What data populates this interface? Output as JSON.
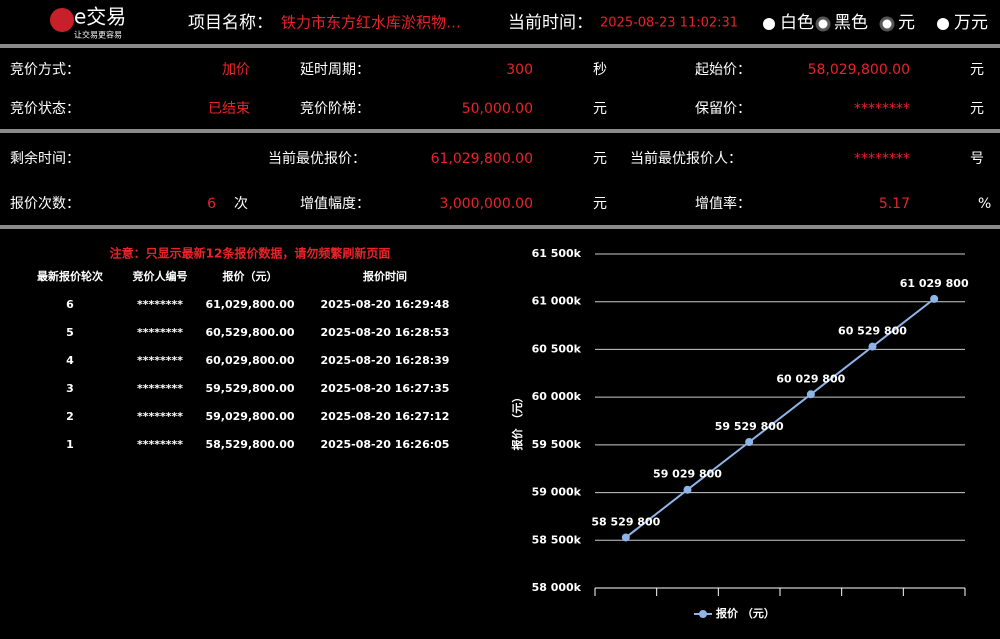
{
  "header": {
    "logo": "e交易",
    "slogan": "让交易更容易",
    "project_label": "项目名称：",
    "project_name": "铁力市东方红水库淤积物…",
    "time_label": "当前时间：",
    "time": "2025-08-23 11:02:31",
    "options": [
      "白色",
      "黑色",
      "元",
      "万元"
    ]
  },
  "info": {
    "method_label": "竞价方式：",
    "method": "加价",
    "delay_label": "延时周期：",
    "delay": "300",
    "delay_unit": "秒",
    "start_label": "起始价：",
    "start": "58,029,800.00",
    "start_unit": "元",
    "status_label": "竞价状态：",
    "status": "已结束",
    "step_label": "竞价阶梯：",
    "step": "50,000.00",
    "step_unit": "元",
    "reserve_label": "保留价：",
    "reserve": "********",
    "reserve_unit": "元",
    "remain_label": "剩余时间：",
    "best_label": "当前最优报价：",
    "best": "61,029,800.00",
    "best_unit": "元",
    "bidder_label": "当前最优报价人：",
    "bidder": "********",
    "bidder_unit": "号",
    "count_label": "报价次数：",
    "count": "6",
    "count_unit": "次",
    "increase_label": "增值幅度：",
    "increase": "3,000,000.00",
    "increase_unit": "元",
    "rate_label": "增值率：",
    "rate": "5.17",
    "rate_unit": "%"
  },
  "table": {
    "notice": "注意：只显示最新12条报价数据，请勿频繁刷新页面",
    "header": [
      "最新报价轮次",
      "竞价人编号",
      "报价（元）",
      "报价时间"
    ],
    "rows": [
      [
        "6",
        "********",
        "61,029,800.00",
        "2025-08-20 16:29:48"
      ],
      [
        "5",
        "********",
        "60,529,800.00",
        "2025-08-20 16:28:53"
      ],
      [
        "4",
        "********",
        "60,029,800.00",
        "2025-08-20 16:28:39"
      ],
      [
        "3",
        "********",
        "59,529,800.00",
        "2025-08-20 16:27:35"
      ],
      [
        "2",
        "********",
        "59,029,800.00",
        "2025-08-20 16:27:12"
      ],
      [
        "1",
        "********",
        "58,529,800.00",
        "2025-08-20 16:26:05"
      ]
    ]
  },
  "chart_data": {
    "type": "line",
    "y_label": "报价 （元）",
    "categories": [
      null,
      null,
      null,
      null,
      null,
      null
    ],
    "series": [
      {
        "name": "报价 （元）",
        "color": "#8fb4e8",
        "values": [
          58529800,
          59029800,
          59529800,
          60029800,
          60529800,
          61029800
        ],
        "value_labels": [
          "58 529 800",
          "59 029 800",
          "59 529 800",
          "60 029 800",
          "60 529 800",
          "61 029 800"
        ]
      }
    ],
    "ylim": [
      58000000,
      61500000
    ],
    "yticks": [
      {
        "value": 58000000,
        "label": "58 000k"
      },
      {
        "value": 58500000,
        "label": "58 500k"
      },
      {
        "value": 59000000,
        "label": "59 000k"
      },
      {
        "value": 59500000,
        "label": "59 500k"
      },
      {
        "value": 60000000,
        "label": "60 000k"
      },
      {
        "value": 60500000,
        "label": "60 500k"
      },
      {
        "value": 61000000,
        "label": "61 000k"
      },
      {
        "value": 61500000,
        "label": "61 500k"
      }
    ],
    "grid": true,
    "legend": "bottom"
  }
}
